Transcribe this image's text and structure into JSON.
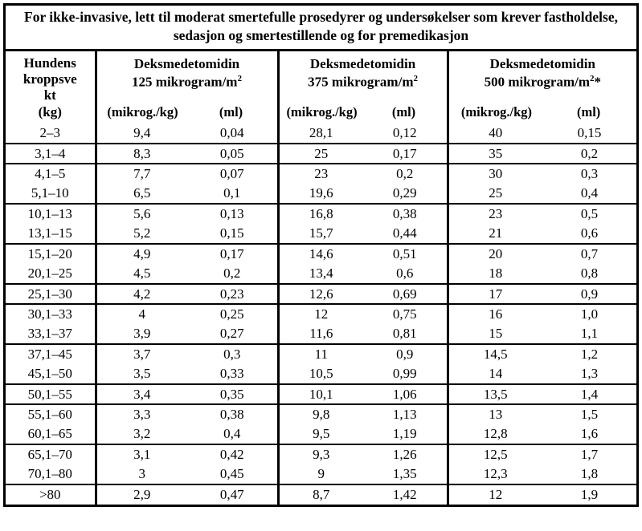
{
  "colors": {
    "border": "#000000",
    "background": "#ffffff",
    "text": "#000000"
  },
  "title": {
    "line1": "For ikke-invasive, lett til moderat smertefulle prosedyrer og undersøkelser som krever fastholdelse,",
    "line2": "sedasjon og smertestillende og for premedikasjon"
  },
  "table": {
    "weight_header": {
      "lines": [
        "Hundens",
        "kroppsve",
        "kt"
      ],
      "unit": "(kg)"
    },
    "dose_columns": [
      {
        "drug": "Deksmedetomidin",
        "dose_prefix": "125 mikrogram/m",
        "dose_sup": "2",
        "dose_suffix": "",
        "sub_ug": "(mikrog./kg)",
        "sub_ml": "(ml)"
      },
      {
        "drug": "Deksmedetomidin",
        "dose_prefix": "375 mikrogram/m",
        "dose_sup": "2",
        "dose_suffix": "",
        "sub_ug": "(mikrog./kg)",
        "sub_ml": "(ml)"
      },
      {
        "drug": "Deksmedetomidin",
        "dose_prefix": "500 mikrogram/m",
        "dose_sup": "2",
        "dose_suffix": "*",
        "sub_ug": "(mikrog./kg)",
        "sub_ml": "(ml)"
      }
    ],
    "rows": [
      {
        "cells": [
          "2–3",
          "9,4",
          "0,04",
          "28,1",
          "0,12",
          "40",
          "0,15"
        ],
        "divider_below": true
      },
      {
        "cells": [
          "3,1–4",
          "8,3",
          "0,05",
          "25",
          "0,17",
          "35",
          "0,2"
        ],
        "divider_below": true
      },
      {
        "cells": [
          "4,1–5",
          "7,7",
          "0,07",
          "23",
          "0,2",
          "30",
          "0,3"
        ],
        "divider_below": false
      },
      {
        "cells": [
          "5,1–10",
          "6,5",
          "0,1",
          "19,6",
          "0,29",
          "25",
          "0,4"
        ],
        "divider_below": true
      },
      {
        "cells": [
          "10,1–13",
          "5,6",
          "0,13",
          "16,8",
          "0,38",
          "23",
          "0,5"
        ],
        "divider_below": false
      },
      {
        "cells": [
          "13,1–15",
          "5,2",
          "0,15",
          "15,7",
          "0,44",
          "21",
          "0,6"
        ],
        "divider_below": true
      },
      {
        "cells": [
          "15,1–20",
          "4,9",
          "0,17",
          "14,6",
          "0,51",
          "20",
          "0,7"
        ],
        "divider_below": false
      },
      {
        "cells": [
          "20,1–25",
          "4,5",
          "0,2",
          "13,4",
          "0,6",
          "18",
          "0,8"
        ],
        "divider_below": true
      },
      {
        "cells": [
          "25,1–30",
          "4,2",
          "0,23",
          "12,6",
          "0,69",
          "17",
          "0,9"
        ],
        "divider_below": true
      },
      {
        "cells": [
          "30,1–33",
          "4",
          "0,25",
          "12",
          "0,75",
          "16",
          "1,0"
        ],
        "divider_below": false
      },
      {
        "cells": [
          "33,1–37",
          "3,9",
          "0,27",
          "11,6",
          "0,81",
          "15",
          "1,1"
        ],
        "divider_below": true
      },
      {
        "cells": [
          "37,1–45",
          "3,7",
          "0,3",
          "11",
          "0,9",
          "14,5",
          "1,2"
        ],
        "divider_below": false
      },
      {
        "cells": [
          "45,1–50",
          "3,5",
          "0,33",
          "10,5",
          "0,99",
          "14",
          "1,3"
        ],
        "divider_below": true
      },
      {
        "cells": [
          "50,1–55",
          "3,4",
          "0,35",
          "10,1",
          "1,06",
          "13,5",
          "1,4"
        ],
        "divider_below": true
      },
      {
        "cells": [
          "55,1–60",
          "3,3",
          "0,38",
          "9,8",
          "1,13",
          "13",
          "1,5"
        ],
        "divider_below": false
      },
      {
        "cells": [
          "60,1–65",
          "3,2",
          "0,4",
          "9,5",
          "1,19",
          "12,8",
          "1,6"
        ],
        "divider_below": true
      },
      {
        "cells": [
          "65,1–70",
          "3,1",
          "0,42",
          "9,3",
          "1,26",
          "12,5",
          "1,7"
        ],
        "divider_below": false
      },
      {
        "cells": [
          "70,1–80",
          "3",
          "0,45",
          "9",
          "1,35",
          "12,3",
          "1,8"
        ],
        "divider_below": true
      },
      {
        "cells": [
          ">80",
          "2,9",
          "0,47",
          "8,7",
          "1,42",
          "12",
          "1,9"
        ],
        "divider_below": false
      }
    ]
  }
}
